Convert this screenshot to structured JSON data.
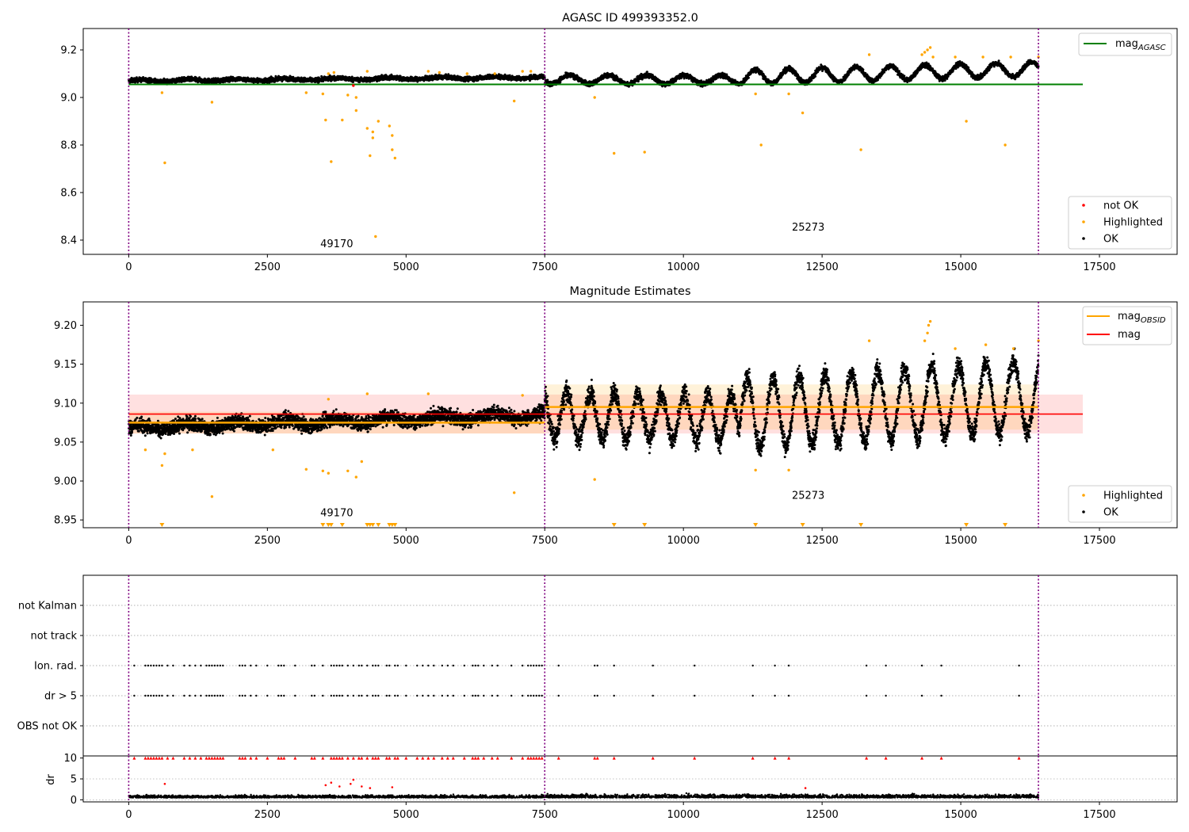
{
  "figure": {
    "title": "AGASC ID 499393352.0"
  },
  "colors": {
    "ok": "#000000",
    "highlighted": "#ffa500",
    "not_ok": "#ff0000",
    "agasc_line": "#008000",
    "obsid_line": "#ffa500",
    "mag_line": "#ff0000",
    "boundary": "#800080",
    "grid": "#b0b0b0"
  },
  "chart_data": [
    {
      "id": "top",
      "type": "scatter",
      "title": "",
      "xlim": [
        -820,
        18900
      ],
      "ylim": [
        8.34,
        9.29
      ],
      "xticks": [
        0,
        2500,
        5000,
        7500,
        10000,
        12500,
        15000,
        17500
      ],
      "yticks": [
        8.4,
        8.6,
        8.8,
        9.0,
        9.2
      ],
      "ytick_labels": [
        "8.4",
        "8.6",
        "8.8",
        "9.0",
        "9.2"
      ],
      "obsid_boundaries": [
        0,
        7500,
        16400
      ],
      "obsid_labels": [
        {
          "text": "49170",
          "x": 3750,
          "y": 8.37
        },
        {
          "text": "25273",
          "x": 12250,
          "y": 8.44
        }
      ],
      "lines": [
        {
          "name": "magAGASC",
          "value": 9.055,
          "x0": 0,
          "x1": 17200
        }
      ],
      "legend_lines": [
        {
          "label": "mag",
          "sub": "AGASC",
          "color": "agasc_line"
        }
      ],
      "legend_markers": [
        {
          "label": "not OK",
          "color": "not_ok"
        },
        {
          "label": "Highlighted",
          "color": "highlighted"
        },
        {
          "label": "OK",
          "color": "ok"
        }
      ],
      "segments": [
        {
          "x0": 0,
          "x1": 7500,
          "start": 9.07,
          "end": 9.085,
          "sigma": 0.009,
          "amp": 0.004,
          "period": 900
        },
        {
          "x0": 7500,
          "x1": 11000,
          "start": 9.075,
          "end": 9.075,
          "sigma": 0.01,
          "amp": 0.018,
          "period": 700
        },
        {
          "x0": 11000,
          "x1": 16400,
          "start": 9.085,
          "end": 9.12,
          "sigma": 0.01,
          "amp": 0.03,
          "period": 620
        }
      ],
      "highlighted": [
        [
          650,
          8.725
        ],
        [
          600,
          9.02
        ],
        [
          1500,
          8.98
        ],
        [
          3200,
          9.02
        ],
        [
          3500,
          9.015
        ],
        [
          3550,
          8.905
        ],
        [
          3650,
          8.73
        ],
        [
          3850,
          8.905
        ],
        [
          3950,
          9.01
        ],
        [
          4100,
          9.0
        ],
        [
          4100,
          8.945
        ],
        [
          4300,
          8.87
        ],
        [
          4350,
          8.755
        ],
        [
          4400,
          8.83
        ],
        [
          4400,
          8.855
        ],
        [
          4450,
          8.415
        ],
        [
          4500,
          8.9
        ],
        [
          4700,
          8.88
        ],
        [
          4750,
          8.84
        ],
        [
          4750,
          8.78
        ],
        [
          4800,
          8.745
        ],
        [
          6950,
          8.985
        ],
        [
          8400,
          9.0
        ],
        [
          8750,
          8.765
        ],
        [
          9300,
          8.77
        ],
        [
          11300,
          9.015
        ],
        [
          11400,
          8.8
        ],
        [
          11900,
          9.015
        ],
        [
          12150,
          8.935
        ],
        [
          13200,
          8.78
        ],
        [
          15100,
          8.9
        ],
        [
          15800,
          8.8
        ],
        [
          3600,
          9.1
        ],
        [
          3700,
          9.105
        ],
        [
          4300,
          9.11
        ],
        [
          5400,
          9.11
        ],
        [
          5600,
          9.105
        ],
        [
          6100,
          9.1
        ],
        [
          6600,
          9.1
        ],
        [
          7100,
          9.11
        ],
        [
          7250,
          9.11
        ],
        [
          13350,
          9.18
        ],
        [
          14300,
          9.18
        ],
        [
          14350,
          9.19
        ],
        [
          14400,
          9.2
        ],
        [
          14450,
          9.21
        ],
        [
          14500,
          9.17
        ],
        [
          14900,
          9.17
        ],
        [
          15400,
          9.17
        ],
        [
          15900,
          9.17
        ],
        [
          16400,
          9.17
        ]
      ],
      "not_ok": [
        [
          4050,
          9.05
        ]
      ]
    },
    {
      "id": "middle",
      "type": "scatter",
      "title": "Magnitude Estimates",
      "xlim": [
        -820,
        18900
      ],
      "ylim": [
        8.94,
        9.23
      ],
      "xticks": [
        0,
        2500,
        5000,
        7500,
        10000,
        12500,
        15000,
        17500
      ],
      "yticks": [
        8.95,
        9.0,
        9.05,
        9.1,
        9.15,
        9.2
      ],
      "ytick_labels": [
        "8.95",
        "9.00",
        "9.05",
        "9.10",
        "9.15",
        "9.20"
      ],
      "obsid_boundaries": [
        0,
        7500,
        16400
      ],
      "obsid_labels": [
        {
          "text": "49170",
          "x": 3750,
          "y": 8.955
        },
        {
          "text": "25273",
          "x": 12250,
          "y": 8.977
        }
      ],
      "mag": {
        "value": 9.086,
        "band": [
          9.061,
          9.111
        ],
        "x0": 0,
        "x1": 17200
      },
      "obsid_mags": [
        {
          "x0": 0,
          "x1": 7500,
          "value": 9.075,
          "band": [
            9.061,
            9.089
          ]
        },
        {
          "x0": 7500,
          "x1": 16400,
          "value": 9.095,
          "band": [
            9.066,
            9.124
          ]
        }
      ],
      "legend_lines": [
        {
          "label": "mag",
          "sub": "OBSID",
          "color": "obsid_line"
        },
        {
          "label": "mag",
          "sub": "",
          "color": "mag_line"
        }
      ],
      "legend_markers": [
        {
          "label": "Highlighted",
          "color": "highlighted"
        },
        {
          "label": "OK",
          "color": "ok"
        }
      ],
      "segments": [
        {
          "x0": 0,
          "x1": 7500,
          "start": 9.068,
          "end": 9.085,
          "sigma": 0.009,
          "amp": 0.004,
          "period": 900
        },
        {
          "x0": 7500,
          "x1": 11000,
          "start": 9.085,
          "end": 9.08,
          "sigma": 0.013,
          "amp": 0.03,
          "period": 430
        },
        {
          "x0": 11000,
          "x1": 16400,
          "start": 9.085,
          "end": 9.11,
          "sigma": 0.013,
          "amp": 0.045,
          "period": 480
        }
      ],
      "highlighted": [
        [
          300,
          9.04
        ],
        [
          600,
          9.02
        ],
        [
          650,
          9.035
        ],
        [
          1150,
          9.04
        ],
        [
          1500,
          8.98
        ],
        [
          2600,
          9.04
        ],
        [
          3200,
          9.015
        ],
        [
          3500,
          9.013
        ],
        [
          3600,
          9.01
        ],
        [
          3950,
          9.013
        ],
        [
          4100,
          9.005
        ],
        [
          4200,
          9.025
        ],
        [
          6950,
          8.985
        ],
        [
          8400,
          9.002
        ],
        [
          11300,
          9.014
        ],
        [
          11900,
          9.014
        ],
        [
          3600,
          9.105
        ],
        [
          4300,
          9.112
        ],
        [
          5400,
          9.112
        ],
        [
          7100,
          9.11
        ],
        [
          13350,
          9.18
        ],
        [
          14350,
          9.18
        ],
        [
          14400,
          9.19
        ],
        [
          14420,
          9.2
        ],
        [
          14450,
          9.205
        ],
        [
          14900,
          9.17
        ],
        [
          15450,
          9.175
        ],
        [
          15950,
          9.17
        ],
        [
          16400,
          9.18
        ]
      ],
      "clipped_low": [
        600,
        3500,
        3600,
        3650,
        3850,
        4300,
        4350,
        4400,
        4500,
        4700,
        4750,
        4800,
        8750,
        9300,
        11300,
        12150,
        13200,
        15100,
        15800
      ]
    },
    {
      "id": "flags",
      "type": "scatter",
      "title": "",
      "xlim": [
        -820,
        18900
      ],
      "categories": [
        "not Kalman",
        "not track",
        "Ion. rad.",
        "dr > 5",
        "OBS not OK"
      ],
      "obsid_boundaries": [
        0,
        7500,
        16400
      ],
      "flag_x": [
        100,
        300,
        350,
        400,
        450,
        500,
        550,
        600,
        700,
        800,
        1000,
        1100,
        1200,
        1300,
        1400,
        1450,
        1500,
        1550,
        1600,
        1650,
        1700,
        2000,
        2050,
        2100,
        2200,
        2300,
        2500,
        2700,
        2750,
        2800,
        3000,
        3300,
        3350,
        3500,
        3650,
        3700,
        3750,
        3800,
        3850,
        3950,
        4050,
        4150,
        4200,
        4300,
        4400,
        4450,
        4500,
        4650,
        4700,
        4800,
        4850,
        5000,
        5200,
        5300,
        5400,
        5500,
        5650,
        5750,
        5850,
        6050,
        6200,
        6250,
        6300,
        6400,
        6550,
        6650,
        6900,
        7100,
        7200,
        7250,
        7300,
        7350,
        7400,
        7450,
        7750,
        8400,
        8450,
        8750,
        9450,
        10200,
        11250,
        11650,
        11900,
        13300,
        13650,
        14300,
        14650,
        16050
      ]
    },
    {
      "id": "dr",
      "type": "scatter",
      "title": "",
      "ylabel": "dr",
      "xlim": [
        -820,
        18900
      ],
      "ylim": [
        -0.5,
        10.5
      ],
      "yticks": [
        0,
        5,
        10
      ],
      "ytick_labels": [
        "0",
        "5",
        "10"
      ],
      "xticks": [
        0,
        2500,
        5000,
        7500,
        10000,
        12500,
        15000,
        17500
      ],
      "obsid_boundaries": [
        0,
        7500,
        16400
      ],
      "bulk": {
        "mean": 0.8,
        "spread": 0.6
      },
      "red_scatter": [
        [
          650,
          3.8
        ],
        [
          3550,
          3.5
        ],
        [
          3650,
          4.1
        ],
        [
          3800,
          3.2
        ],
        [
          4000,
          3.8
        ],
        [
          4050,
          4.8
        ],
        [
          4200,
          3.2
        ],
        [
          4350,
          2.8
        ],
        [
          4750,
          3.0
        ],
        [
          12200,
          2.8
        ]
      ]
    }
  ]
}
